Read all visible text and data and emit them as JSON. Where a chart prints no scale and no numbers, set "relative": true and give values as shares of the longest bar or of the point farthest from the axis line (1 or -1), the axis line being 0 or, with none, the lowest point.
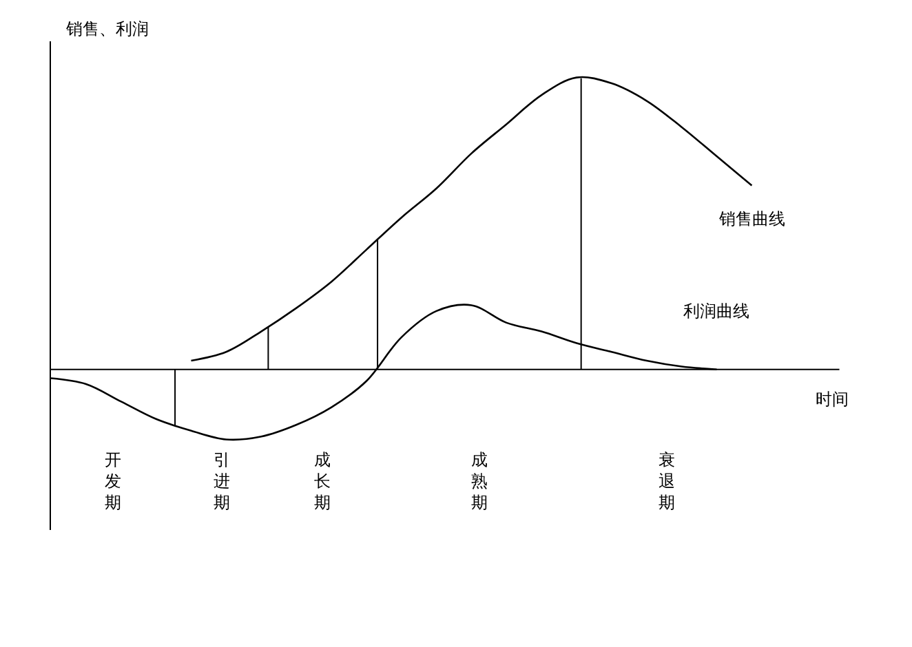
{
  "chart_data": {
    "type": "line",
    "relative": true,
    "ylabel": "销售、利润",
    "xlabel": "时间",
    "categories": [
      null,
      null,
      null,
      null,
      null,
      null,
      null,
      null,
      null,
      null,
      null,
      null,
      null,
      null,
      null,
      null,
      null,
      null,
      null,
      null,
      null
    ],
    "series": [
      {
        "name": "销售曲线",
        "color": "#000000",
        "values": [
          null,
          null,
          null,
          null,
          0.03,
          0.06,
          0.13,
          0.21,
          0.3,
          0.41,
          0.52,
          0.62,
          0.74,
          0.84,
          0.94,
          1,
          0.98,
          0.92,
          0.83,
          0.73,
          0.63
        ]
      },
      {
        "name": "利润曲线",
        "color": "#000000",
        "values": [
          -0.03,
          -0.05,
          -0.11,
          -0.17,
          -0.21,
          -0.24,
          -0.23,
          -0.19,
          -0.13,
          -0.04,
          0.11,
          0.2,
          0.22,
          0.16,
          0.13,
          0.09,
          0.06,
          0.03,
          0.01,
          0,
          null
        ]
      }
    ],
    "annotations": [
      "开发期",
      "引进期",
      "成长期",
      "成熟期",
      "衰退期"
    ],
    "legend": false,
    "marker": "none",
    "line_style": "solid"
  }
}
